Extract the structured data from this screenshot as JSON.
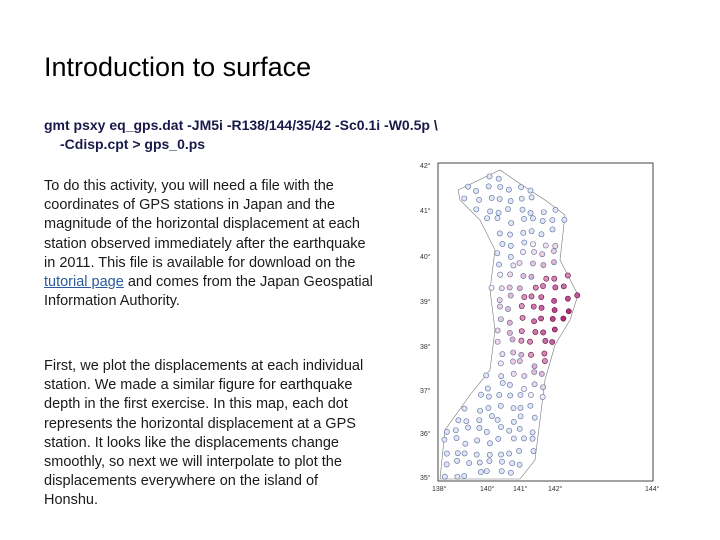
{
  "title": "Introduction to surface",
  "command": [
    "gmt psxy eq_gps.dat -JM5i -R138/144/35/42 -Sc0.1i -W0.5p \\",
    "-Cdisp.cpt > gps_0.ps"
  ],
  "paragraphs": [
    {
      "before": "To do this activity, you will need a file with the coordinates of GPS stations in Japan and the magnitude of the horizontal displacement at each station observed immediately after the earthquake in 2011. This file is available for download on the ",
      "link": "tutorial page",
      "after": " and comes from the Japan Geospatial Information Authority."
    },
    {
      "text": "First, we plot the displacements at each individual station. We made a similar figure for earthquake depth in the first exercise. In this map, each dot represents the horizontal displacement at a GPS station. It looks like the displacements change smoothly, so next we will interpolate to plot the displacements everywhere on the island of Honshu."
    }
  ],
  "map": {
    "lat_labels": [
      "42°",
      "41°",
      "40°",
      "39°",
      "38°",
      "37°",
      "36°",
      "35°"
    ],
    "lon_labels": [
      "138°",
      "140°",
      "141°",
      "142°",
      "144°"
    ]
  }
}
